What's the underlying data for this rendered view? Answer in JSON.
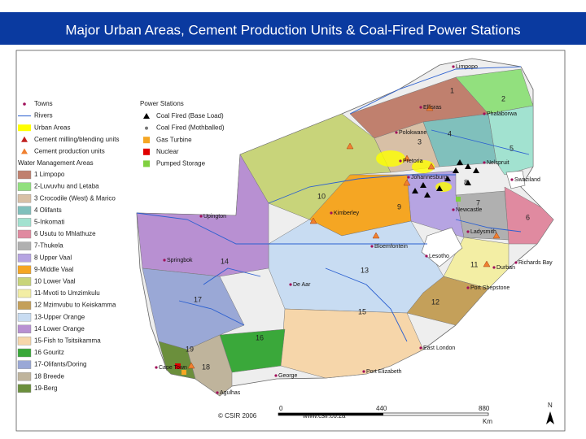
{
  "header": {
    "title": "Major Urban Areas, Cement Production Units & Coal-Fired Power Stations"
  },
  "legend": {
    "items": [
      "Towns",
      "Rivers",
      "Urban Areas",
      "Cement milling/blending units",
      "Cement production units"
    ],
    "power_stations_title": "Power Stations",
    "power_stations": [
      "Coal Fired (Base Load)",
      "Coal Fired (Mothballed)",
      "Gas Turbine",
      "Nuclear",
      "Pumped Storage"
    ],
    "wma_title": "Water Management Areas",
    "wma": [
      {
        "label": "1 Limpopo",
        "color": "#c0806e"
      },
      {
        "label": "2-Luvuvhu and Letaba",
        "color": "#92e07e"
      },
      {
        "label": "3 Crocodile (West) & Marico",
        "color": "#d8c0a6"
      },
      {
        "label": "4 Olifants",
        "color": "#80c0bc"
      },
      {
        "label": "5-Inkomati",
        "color": "#a2e2d0"
      },
      {
        "label": "6 Usutu to Mhlathuze",
        "color": "#e08aa0"
      },
      {
        "label": "7-Thukela",
        "color": "#b0b0b0"
      },
      {
        "label": "8 Upper Vaal",
        "color": "#b6a4e2"
      },
      {
        "label": "9-Middle Vaal",
        "color": "#f5a623"
      },
      {
        "label": "10 Lower Vaal",
        "color": "#c8d47a"
      },
      {
        "label": "11-Mvoti to Umzimkulu",
        "color": "#f3eea4"
      },
      {
        "label": "12 Mzimvubu to Keiskamma",
        "color": "#c4a05a"
      },
      {
        "label": "13-Upper Orange",
        "color": "#c8dcf2"
      },
      {
        "label": "14 Lower Orange",
        "color": "#b890d2"
      },
      {
        "label": "15-Fish to Tsitsikamma",
        "color": "#f6d6aa"
      },
      {
        "label": "16 Gouritz",
        "color": "#3aa83a"
      },
      {
        "label": "17-Olifants/Doring",
        "color": "#9aa8d6"
      },
      {
        "label": "18 Breede",
        "color": "#bfb49c"
      },
      {
        "label": "19-Berg",
        "color": "#6b8f3c"
      }
    ]
  },
  "map": {
    "places": [
      "Limpopo",
      "Ellisras",
      "Phalaborwa",
      "Polokwane",
      "Pretoria",
      "Johannesburg",
      "Nelspruit",
      "Swaziland",
      "Newcastle",
      "Ladysmith",
      "Richards Bay",
      "Durban",
      "Port Shepstone",
      "Lesotho",
      "Bloemfontein",
      "Kimberley",
      "De Aar",
      "Springbok",
      "Upington",
      "Cape Town",
      "George",
      "Port Elizabeth",
      "East London",
      "Agulhas"
    ],
    "region_numbers": [
      "1",
      "2",
      "3",
      "4",
      "5",
      "6",
      "7",
      "8",
      "9",
      "10",
      "11",
      "12",
      "13",
      "14",
      "15",
      "16",
      "17",
      "18",
      "19"
    ]
  },
  "footer": {
    "credit": "© CSIR 2006",
    "url": "www.csir.co.za",
    "scale_ticks": [
      "0",
      "440",
      "880"
    ],
    "unit": "Km",
    "north": "N"
  }
}
